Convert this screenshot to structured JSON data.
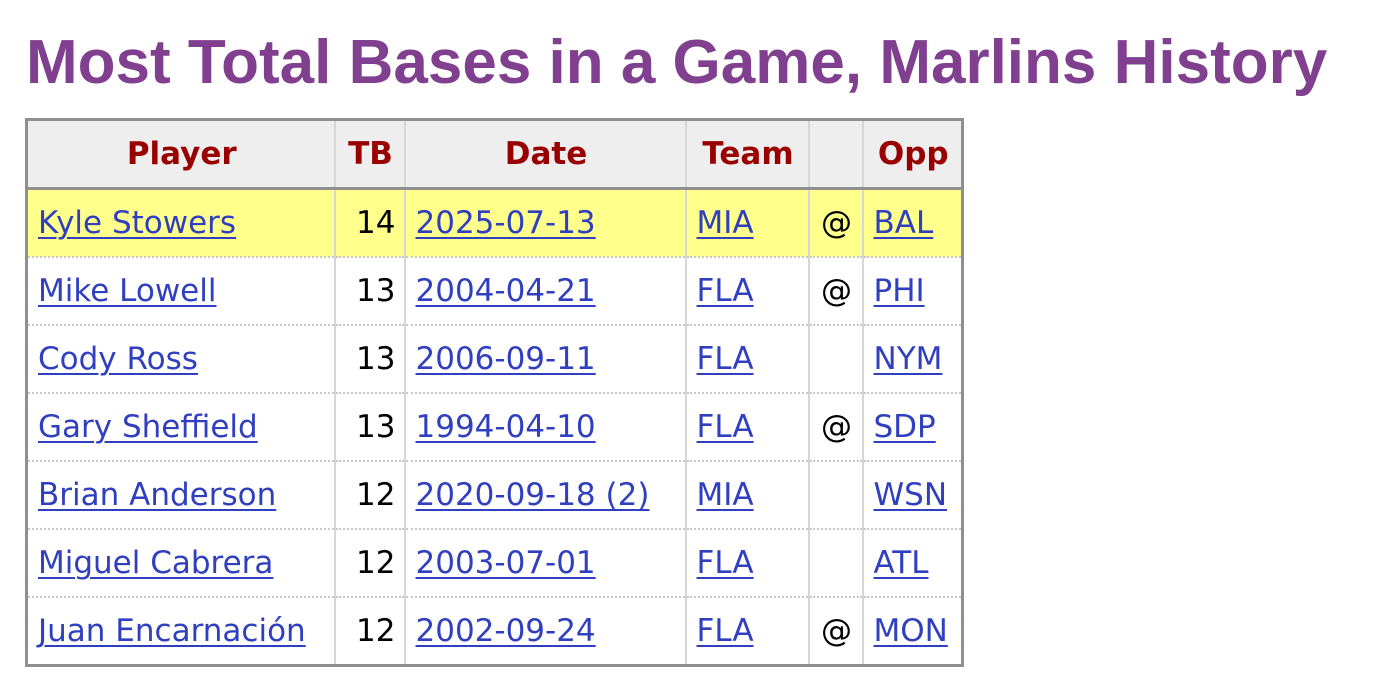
{
  "title": "Most Total Bases in a Game, Marlins History",
  "table": {
    "headers": {
      "player": "Player",
      "tb": "TB",
      "date": "Date",
      "team": "Team",
      "at": "",
      "opp": "Opp"
    },
    "rows": [
      {
        "player": "Kyle Stowers",
        "tb": "14",
        "date": "2025-07-13",
        "team": "MIA",
        "at": "@",
        "opp": "BAL",
        "highlight": true
      },
      {
        "player": "Mike Lowell",
        "tb": "13",
        "date": "2004-04-21",
        "team": "FLA",
        "at": "@",
        "opp": "PHI",
        "highlight": false
      },
      {
        "player": "Cody Ross",
        "tb": "13",
        "date": "2006-09-11",
        "team": "FLA",
        "at": "",
        "opp": "NYM",
        "highlight": false
      },
      {
        "player": "Gary Sheffield",
        "tb": "13",
        "date": "1994-04-10",
        "team": "FLA",
        "at": "@",
        "opp": "SDP",
        "highlight": false
      },
      {
        "player": "Brian Anderson",
        "tb": "12",
        "date": "2020-09-18 (2)",
        "team": "MIA",
        "at": "",
        "opp": "WSN",
        "highlight": false
      },
      {
        "player": "Miguel Cabrera",
        "tb": "12",
        "date": "2003-07-01",
        "team": "FLA",
        "at": "",
        "opp": "ATL",
        "highlight": false
      },
      {
        "player": "Juan Encarnación",
        "tb": "12",
        "date": "2002-09-24",
        "team": "FLA",
        "at": "@",
        "opp": "MON",
        "highlight": false
      }
    ]
  },
  "colors": {
    "title": "#80408f",
    "header_text": "#990000",
    "header_bg": "#eeeeee",
    "link": "#2f3fbf",
    "highlight_row": "#ffff8c",
    "table_border": "#8f8f8f"
  }
}
